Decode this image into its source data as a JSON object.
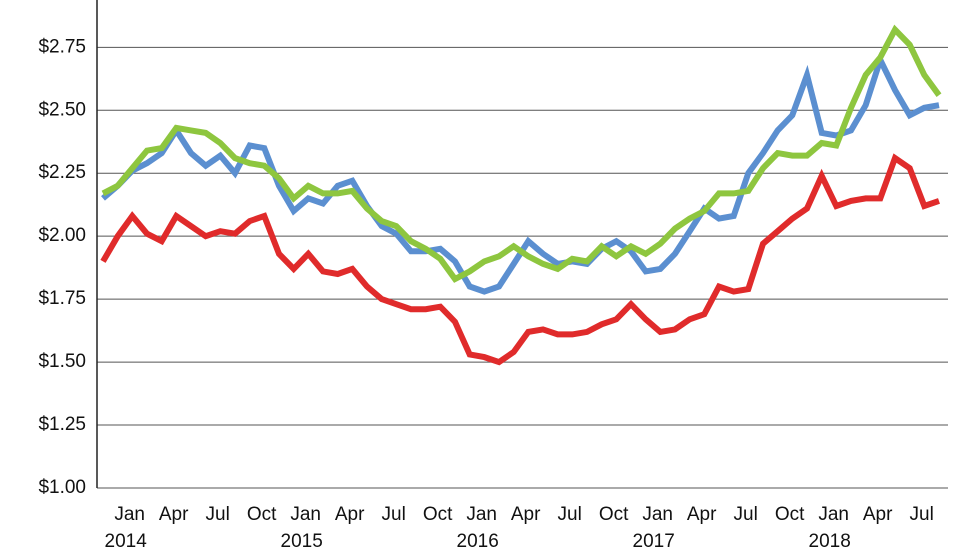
{
  "chart_data": {
    "type": "line",
    "categories": [
      null,
      "Jan\n2014",
      null,
      null,
      "Apr",
      null,
      null,
      "Jul",
      null,
      null,
      "Oct",
      null,
      null,
      "Jan\n2015",
      null,
      null,
      "Apr",
      null,
      null,
      "Jul",
      null,
      null,
      "Oct",
      null,
      null,
      "Jan\n2016",
      null,
      null,
      "Apr",
      null,
      null,
      "Jul",
      null,
      null,
      "Oct",
      null,
      null,
      "Jan\n2017",
      null,
      null,
      "Apr",
      null,
      null,
      "Jul",
      null,
      null,
      "Oct",
      null,
      null,
      "Jan\n2018",
      null,
      null,
      "Apr",
      null,
      null,
      "Jul",
      null,
      null
    ],
    "series": [
      {
        "color": "#5b8fd0",
        "values": [
          2.15,
          2.2,
          2.26,
          2.29,
          2.33,
          2.42,
          2.33,
          2.28,
          2.32,
          2.25,
          2.36,
          2.35,
          2.2,
          2.1,
          2.15,
          2.13,
          2.2,
          2.22,
          2.12,
          2.04,
          2.01,
          1.94,
          1.94,
          1.95,
          1.9,
          1.8,
          1.78,
          1.8,
          1.89,
          1.98,
          1.93,
          1.89,
          1.9,
          1.89,
          1.95,
          1.98,
          1.94,
          1.86,
          1.87,
          1.93,
          2.02,
          2.11,
          2.07,
          2.08,
          2.25,
          2.33,
          2.42,
          2.48,
          2.64,
          2.41,
          2.4,
          2.42,
          2.52,
          2.7,
          2.58,
          2.48,
          2.51,
          2.52
        ]
      },
      {
        "color": "#8ec63f",
        "values": [
          2.17,
          2.2,
          2.27,
          2.34,
          2.35,
          2.43,
          2.42,
          2.41,
          2.37,
          2.31,
          2.29,
          2.28,
          2.23,
          2.15,
          2.2,
          2.17,
          2.17,
          2.18,
          2.11,
          2.06,
          2.04,
          1.98,
          1.95,
          1.91,
          1.83,
          1.86,
          1.9,
          1.92,
          1.96,
          1.92,
          1.89,
          1.87,
          1.91,
          1.9,
          1.96,
          1.92,
          1.96,
          1.93,
          1.97,
          2.03,
          2.07,
          2.1,
          2.17,
          2.17,
          2.18,
          2.27,
          2.33,
          2.32,
          2.32,
          2.37,
          2.36,
          2.51,
          2.64,
          2.71,
          2.82,
          2.76,
          2.64,
          2.56
        ]
      },
      {
        "color": "#e02b2b",
        "values": [
          1.9,
          2.0,
          2.08,
          2.01,
          1.98,
          2.08,
          2.04,
          2.0,
          2.02,
          2.01,
          2.06,
          2.08,
          1.93,
          1.87,
          1.93,
          1.86,
          1.85,
          1.87,
          1.8,
          1.75,
          1.73,
          1.71,
          1.71,
          1.72,
          1.66,
          1.53,
          1.52,
          1.5,
          1.54,
          1.62,
          1.63,
          1.61,
          1.61,
          1.62,
          1.65,
          1.67,
          1.73,
          1.67,
          1.62,
          1.63,
          1.67,
          1.69,
          1.8,
          1.78,
          1.79,
          1.97,
          2.02,
          2.07,
          2.11,
          2.24,
          2.12,
          2.14,
          2.15,
          2.15,
          2.31,
          2.27,
          2.12,
          2.14
        ]
      }
    ],
    "ylim": [
      1,
      2.93
    ],
    "yticks": [
      {
        "value": 1,
        "label": "$1.00"
      },
      {
        "value": 1.25,
        "label": "$1.25"
      },
      {
        "value": 1.5,
        "label": "$1.50"
      },
      {
        "value": 1.75,
        "label": "$1.75"
      },
      {
        "value": 2,
        "label": "$2.00"
      },
      {
        "value": 2.25,
        "label": "$2.25"
      },
      {
        "value": 2.5,
        "label": "$2.50"
      },
      {
        "value": 2.75,
        "label": "$2.75"
      }
    ],
    "grid": true
  }
}
